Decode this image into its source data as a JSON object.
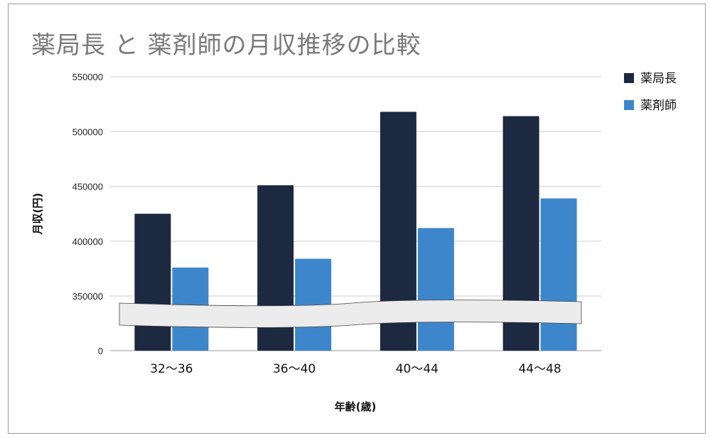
{
  "colors": {
    "series1": "#1d2841",
    "series2": "#3d86cb",
    "grid": "#cfcfcf",
    "break_fill": "#ececec",
    "break_stroke": "#444444"
  },
  "chart_data": {
    "type": "bar",
    "title": "薬局長 と 薬剤師の月収推移の比較",
    "xlabel": "年齢(歳)",
    "ylabel": "月収(円)",
    "categories": [
      "32〜36",
      "36〜40",
      "40〜44",
      "44〜48"
    ],
    "series": [
      {
        "name": "薬局長",
        "values": [
          425000,
          451000,
          518000,
          514000
        ]
      },
      {
        "name": "薬剤師",
        "values": [
          376000,
          384000,
          412000,
          439000
        ]
      }
    ],
    "y_ticks": [
      "0",
      "350000",
      "400000",
      "450000",
      "500000",
      "550000"
    ],
    "ylim": [
      300000,
      550000
    ],
    "axis_break": true,
    "grid": true,
    "legend_position": "top-right"
  }
}
